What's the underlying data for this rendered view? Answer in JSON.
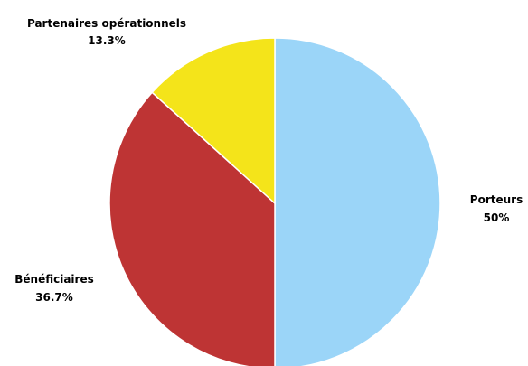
{
  "chart_data": {
    "type": "pie",
    "title": "",
    "start": "top",
    "direction": "clockwise",
    "slices": [
      {
        "label": "Porteurs",
        "value": 50,
        "display": "50%",
        "color": "#9bd5f8"
      },
      {
        "label": "Bénéficiaires",
        "value": 36.7,
        "display": "36.7%",
        "color": "#be3434"
      },
      {
        "label": "Partenaires opérationnels",
        "value": 13.3,
        "display": "13.3%",
        "color": "#f4e41a"
      }
    ]
  }
}
